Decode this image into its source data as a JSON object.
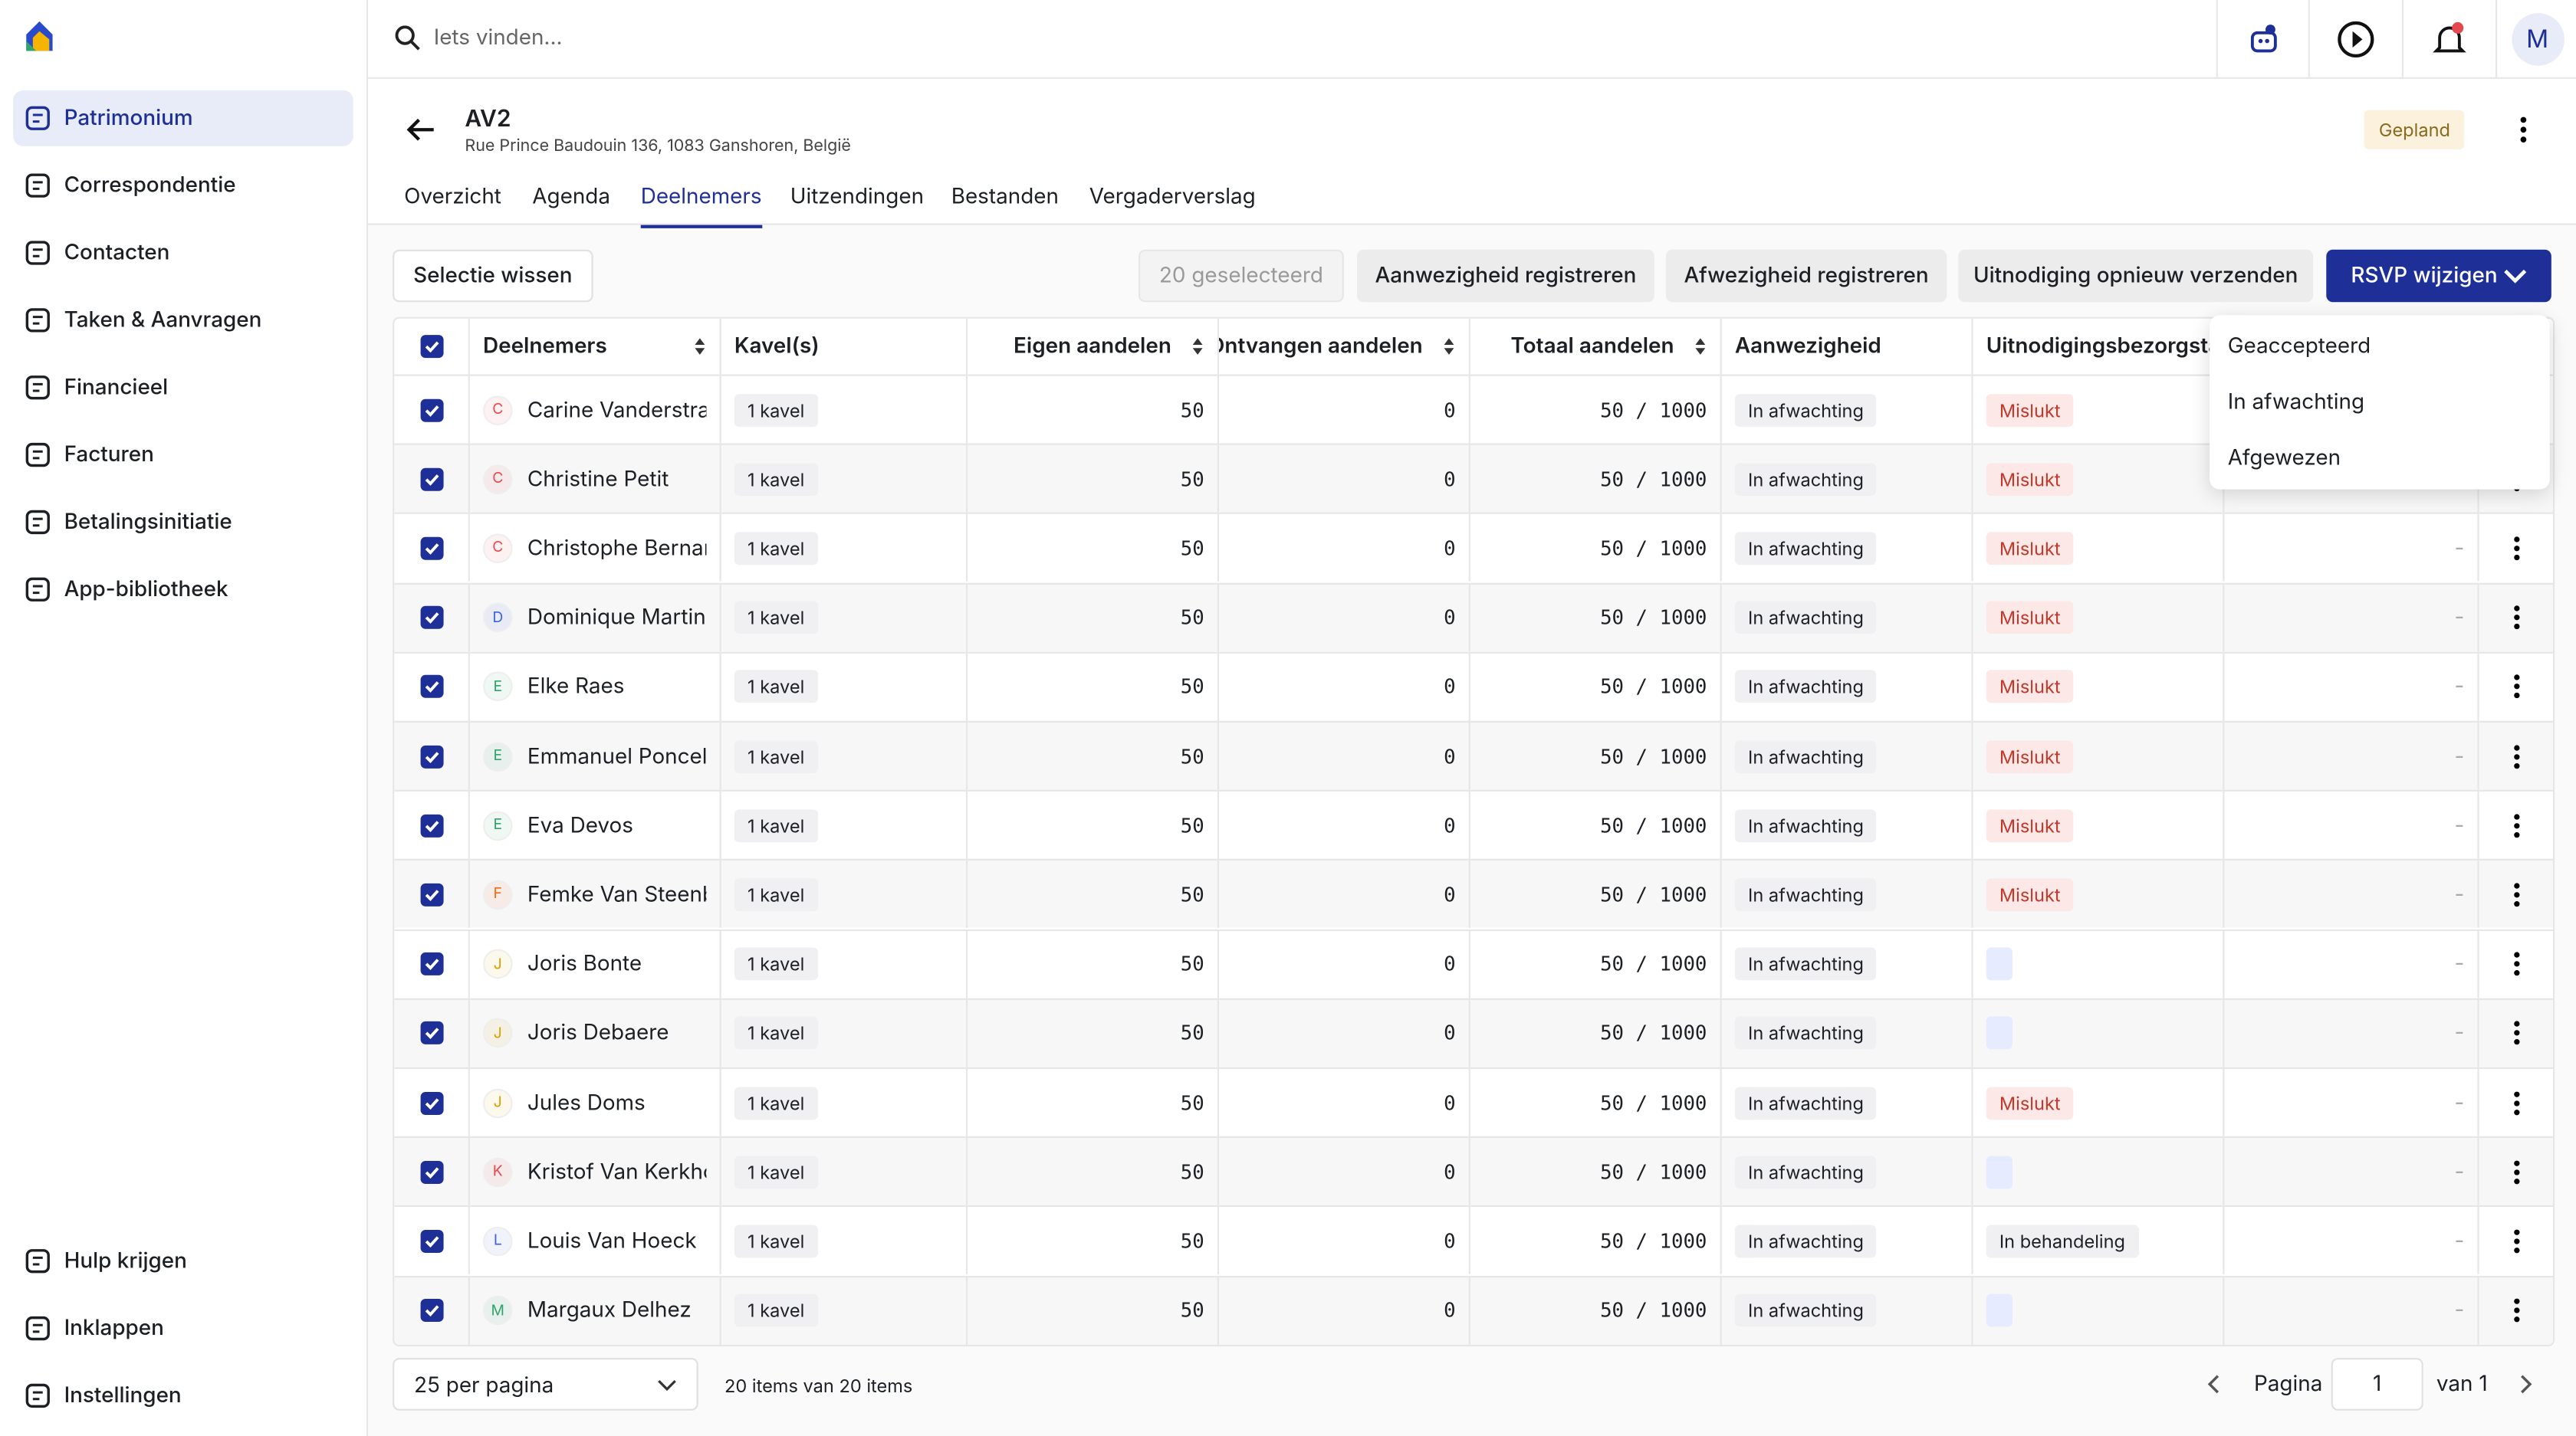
{
  "sidebar": {
    "items": [
      "Patrimonium",
      "Correspondentie",
      "Contacten",
      "Taken & Aanvragen",
      "Financieel",
      "Facturen",
      "Betalingsinitiatie",
      "App-bibliotheek"
    ],
    "active": 0,
    "bottom": [
      "Hulp krijgen",
      "Inklappen",
      "Instellingen"
    ]
  },
  "topbar": {
    "search_placeholder": "Iets vinden...",
    "avatar": "M"
  },
  "header": {
    "title": "AV2",
    "address": "Rue Prince Baudouin 136, 1083 Ganshoren, België",
    "status": "Gepland"
  },
  "tabs": {
    "items": [
      "Overzicht",
      "Agenda",
      "Deelnemers",
      "Uitzendingen",
      "Bestanden",
      "Vergaderverslag"
    ],
    "active": 2
  },
  "toolbar": {
    "clear": "Selectie wissen",
    "selected": "20 geselecteerd",
    "buttons": [
      "Aanwezigheid registreren",
      "Afwezigheid registreren",
      "Uitnodiging opnieuw verzenden"
    ],
    "primary": "RSVP wijzigen"
  },
  "dropdown": [
    "Geaccepteerd",
    "In afwachting",
    "Afgewezen"
  ],
  "table": {
    "columns": [
      "Deelnemers",
      "Kavel(s)",
      "Eigen aandelen",
      "Ontvangen aandelen",
      "Totaal aandelen",
      "Aanwezigheid",
      "Uitnodigingsbezorgstatus"
    ],
    "rows": [
      {
        "initial": "C",
        "color": "#e5484d",
        "name": "Carine Vanderstrae",
        "kavel": "1 kavel",
        "eigen": 50,
        "ontvangen": 0,
        "totaal": "50 / 1000",
        "aanwezigheid": "In afwachting",
        "status": "Mislukt",
        "extra": "-"
      },
      {
        "initial": "C",
        "color": "#e5484d",
        "name": "Christine Petit",
        "kavel": "1 kavel",
        "eigen": 50,
        "ontvangen": 0,
        "totaal": "50 / 1000",
        "aanwezigheid": "In afwachting",
        "status": "Mislukt",
        "extra": "-"
      },
      {
        "initial": "C",
        "color": "#e5484d",
        "name": "Christophe Bernarc",
        "kavel": "1 kavel",
        "eigen": 50,
        "ontvangen": 0,
        "totaal": "50 / 1000",
        "aanwezigheid": "In afwachting",
        "status": "Mislukt",
        "extra": "-"
      },
      {
        "initial": "D",
        "color": "#3e63dd",
        "name": "Dominique Martin",
        "kavel": "1 kavel",
        "eigen": 50,
        "ontvangen": 0,
        "totaal": "50 / 1000",
        "aanwezigheid": "In afwachting",
        "status": "Mislukt",
        "extra": "-"
      },
      {
        "initial": "E",
        "color": "#30a46c",
        "name": "Elke Raes",
        "kavel": "1 kavel",
        "eigen": 50,
        "ontvangen": 0,
        "totaal": "50 / 1000",
        "aanwezigheid": "In afwachting",
        "status": "Mislukt",
        "extra": "-"
      },
      {
        "initial": "E",
        "color": "#30a46c",
        "name": "Emmanuel Poncele",
        "kavel": "1 kavel",
        "eigen": 50,
        "ontvangen": 0,
        "totaal": "50 / 1000",
        "aanwezigheid": "In afwachting",
        "status": "Mislukt",
        "extra": "-"
      },
      {
        "initial": "E",
        "color": "#30a46c",
        "name": "Eva Devos",
        "kavel": "1 kavel",
        "eigen": 50,
        "ontvangen": 0,
        "totaal": "50 / 1000",
        "aanwezigheid": "In afwachting",
        "status": "Mislukt",
        "extra": "-"
      },
      {
        "initial": "F",
        "color": "#f76b15",
        "name": "Femke Van Steenb",
        "kavel": "1 kavel",
        "eigen": 50,
        "ontvangen": 0,
        "totaal": "50 / 1000",
        "aanwezigheid": "In afwachting",
        "status": "Mislukt",
        "extra": "-"
      },
      {
        "initial": "J",
        "color": "#d6a000",
        "name": "Joris Bonte",
        "kavel": "1 kavel",
        "eigen": 50,
        "ontvangen": 0,
        "totaal": "50 / 1000",
        "aanwezigheid": "In afwachting",
        "status": null,
        "extra": "-"
      },
      {
        "initial": "J",
        "color": "#d6a000",
        "name": "Joris Debaere",
        "kavel": "1 kavel",
        "eigen": 50,
        "ontvangen": 0,
        "totaal": "50 / 1000",
        "aanwezigheid": "In afwachting",
        "status": null,
        "extra": "-"
      },
      {
        "initial": "J",
        "color": "#d6a000",
        "name": "Jules Doms",
        "kavel": "1 kavel",
        "eigen": 50,
        "ontvangen": 0,
        "totaal": "50 / 1000",
        "aanwezigheid": "In afwachting",
        "status": "Mislukt",
        "extra": "-"
      },
      {
        "initial": "K",
        "color": "#e5484d",
        "name": "Kristof Van Kerkho",
        "kavel": "1 kavel",
        "eigen": 50,
        "ontvangen": 0,
        "totaal": "50 / 1000",
        "aanwezigheid": "In afwachting",
        "status": null,
        "extra": "-"
      },
      {
        "initial": "L",
        "color": "#3e63dd",
        "name": "Louis Van Hoeck",
        "kavel": "1 kavel",
        "eigen": 50,
        "ontvangen": 0,
        "totaal": "50 / 1000",
        "aanwezigheid": "In afwachting",
        "status": "In behandeling",
        "extra": "-"
      },
      {
        "initial": "M",
        "color": "#30a46c",
        "name": "Margaux Delhez",
        "kavel": "1 kavel",
        "eigen": 50,
        "ontvangen": 0,
        "totaal": "50 / 1000",
        "aanwezigheid": "In afwachting",
        "status": null,
        "extra": "-"
      }
    ]
  },
  "footer": {
    "per_page": "25 per pagina",
    "count": "20 items van 20 items",
    "page_label": "Pagina",
    "page": "1",
    "of": "van 1"
  }
}
